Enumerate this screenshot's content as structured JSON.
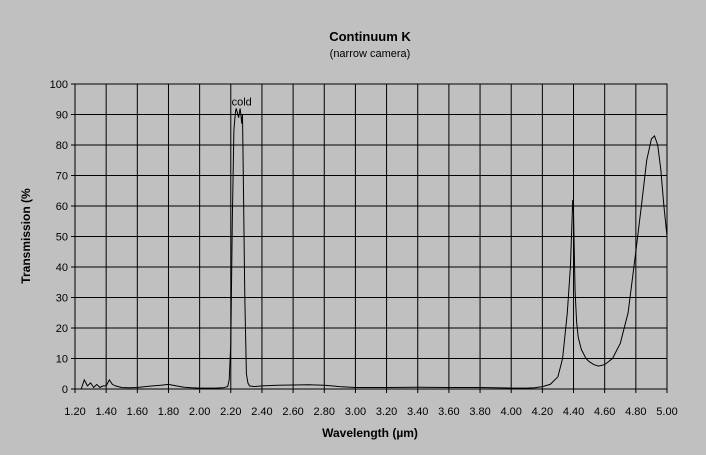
{
  "chart_data": {
    "type": "line",
    "title": "Continuum K",
    "subtitle": "(narrow camera)",
    "xlabel": "Wavelength (µm)",
    "ylabel": "Transmission (%",
    "xlim": [
      1.2,
      5.0
    ],
    "ylim": [
      0,
      100
    ],
    "xticks": [
      "1.20",
      "1.40",
      "1.60",
      "1.80",
      "2.00",
      "2.20",
      "2.40",
      "2.60",
      "2.80",
      "3.00",
      "3.20",
      "3.40",
      "3.60",
      "3.80",
      "4.00",
      "4.20",
      "4.40",
      "4.60",
      "4.80",
      "5.00"
    ],
    "yticks": [
      "0",
      "10",
      "20",
      "30",
      "40",
      "50",
      "60",
      "70",
      "80",
      "90",
      "100"
    ],
    "grid": true,
    "annotations": [
      {
        "text": "cold",
        "x": 2.27,
        "y": 93
      }
    ],
    "series": [
      {
        "x": [
          1.2,
          1.22,
          1.24,
          1.26,
          1.28,
          1.3,
          1.32,
          1.34,
          1.36,
          1.38,
          1.4,
          1.42,
          1.44,
          1.46,
          1.5,
          1.55,
          1.6,
          1.65,
          1.7,
          1.75,
          1.8,
          1.85,
          1.9,
          1.95,
          2.0,
          2.05,
          2.1,
          2.15,
          2.18,
          2.19,
          2.2,
          2.21,
          2.22,
          2.23,
          2.235,
          2.24,
          2.25,
          2.26,
          2.265,
          2.27,
          2.275,
          2.28,
          2.29,
          2.3,
          2.31,
          2.32,
          2.35,
          2.4,
          2.5,
          2.6,
          2.7,
          2.8,
          2.85,
          2.9,
          3.0,
          3.1,
          3.2,
          3.4,
          3.6,
          3.8,
          4.0,
          4.05,
          4.1,
          4.15,
          4.2,
          4.25,
          4.3,
          4.33,
          4.36,
          4.38,
          4.39,
          4.395,
          4.4,
          4.405,
          4.41,
          4.42,
          4.43,
          4.45,
          4.48,
          4.5,
          4.53,
          4.56,
          4.6,
          4.65,
          4.7,
          4.75,
          4.8,
          4.84,
          4.87,
          4.9,
          4.92,
          4.94,
          4.96,
          4.98,
          5.0
        ],
        "y": [
          0,
          0,
          0,
          3,
          1,
          2,
          0.5,
          1.5,
          0.5,
          1,
          1,
          3,
          1.5,
          1,
          0.5,
          0.4,
          0.5,
          0.8,
          1,
          1.2,
          1.5,
          1,
          0.6,
          0.4,
          0.3,
          0.3,
          0.3,
          0.4,
          0.8,
          3,
          15,
          55,
          85,
          91,
          92,
          91,
          89,
          92,
          90,
          87,
          90,
          70,
          30,
          5,
          2,
          1,
          0.8,
          1,
          1.2,
          1.3,
          1.4,
          1.2,
          1,
          0.8,
          0.5,
          0.5,
          0.5,
          0.6,
          0.5,
          0.5,
          0.3,
          0.3,
          0.3,
          0.4,
          0.8,
          1.5,
          4,
          10,
          25,
          40,
          55,
          62,
          58,
          45,
          32,
          22,
          17,
          13,
          10,
          9,
          8,
          7.5,
          8,
          10,
          15,
          25,
          45,
          62,
          75,
          82,
          83,
          80,
          72,
          60,
          50
        ]
      }
    ]
  }
}
